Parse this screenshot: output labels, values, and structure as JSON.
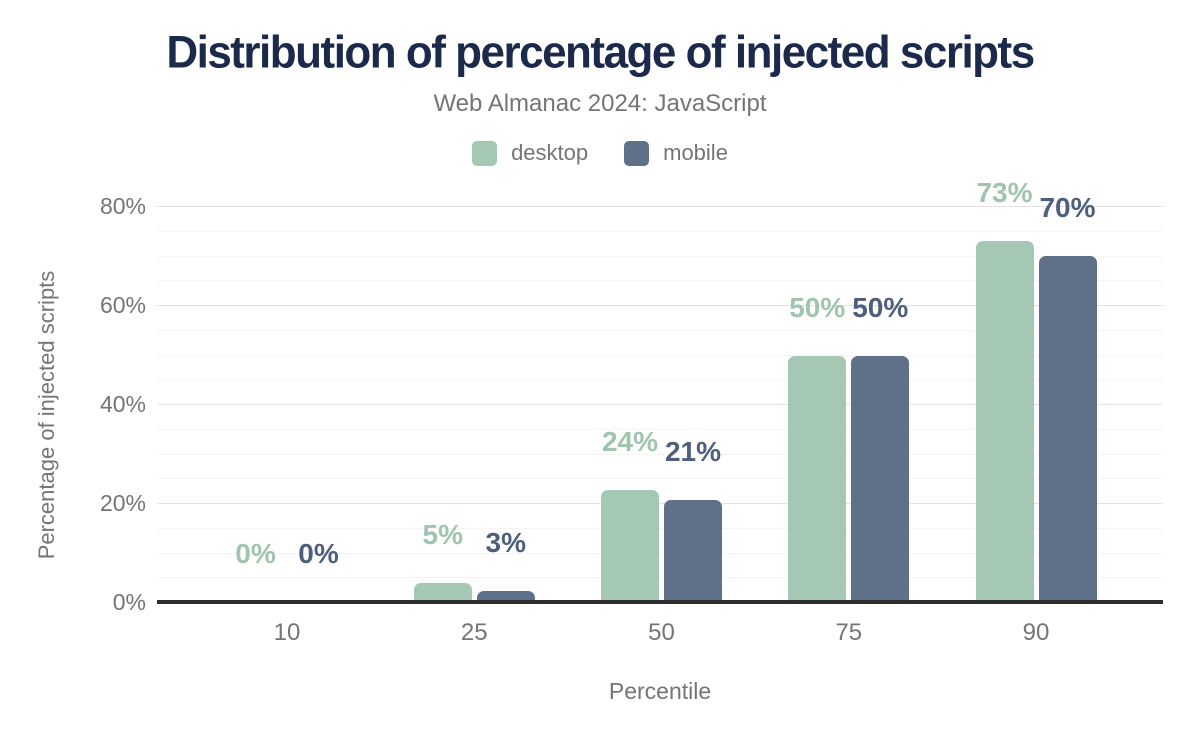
{
  "chart_data": {
    "type": "bar",
    "title": "Distribution of percentage of injected scripts",
    "subtitle": "Web Almanac 2024: JavaScript",
    "xlabel": "Percentile",
    "ylabel": "Percentage of injected scripts",
    "categories": [
      "10",
      "25",
      "50",
      "75",
      "90"
    ],
    "series": [
      {
        "name": "desktop",
        "color": "#a5c8b5",
        "label_color": "#9fc4af",
        "values": [
          0,
          5,
          24,
          50,
          73
        ],
        "labels": [
          "0%",
          "5%",
          "24%",
          "50%",
          "73%"
        ],
        "bar_heights_pct": [
          0,
          3.8,
          22.6,
          49.6,
          73
        ]
      },
      {
        "name": "mobile",
        "color": "#5f7089",
        "label_color": "#4e5f7e",
        "values": [
          0,
          3,
          21,
          50,
          70
        ],
        "labels": [
          "0%",
          "3%",
          "21%",
          "50%",
          "70%"
        ],
        "bar_heights_pct": [
          0,
          2.2,
          20.6,
          49.6,
          70
        ]
      }
    ],
    "ylim": [
      0,
      80
    ],
    "y_ticks": [
      {
        "value": 0,
        "label": "0%"
      },
      {
        "value": 20,
        "label": "20%"
      },
      {
        "value": 40,
        "label": "40%"
      },
      {
        "value": 60,
        "label": "60%"
      },
      {
        "value": 80,
        "label": "80%"
      }
    ],
    "grid": {
      "major_step": 20,
      "minor_step": 5,
      "shown": true
    },
    "legend_position": "top",
    "colors": {
      "title": "#1b2a4a",
      "muted_text": "#757575",
      "axis_line": "#2d2d2d",
      "background": "#ffffff"
    }
  }
}
